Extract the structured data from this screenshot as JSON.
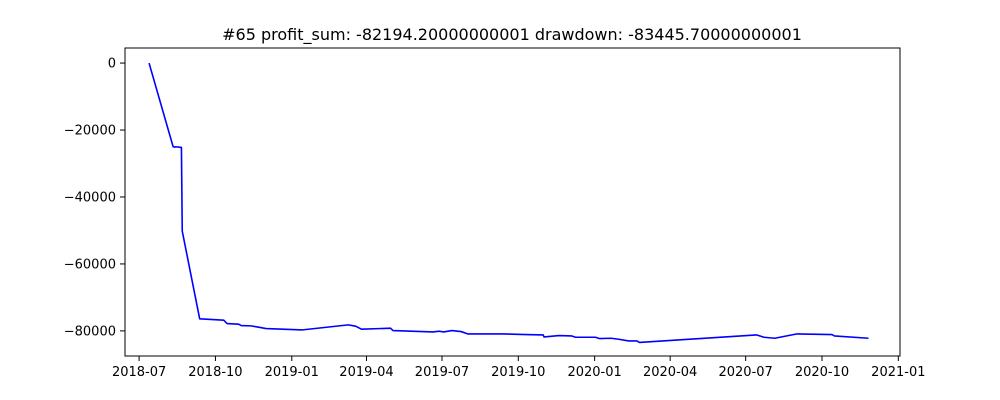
{
  "chart_data": {
    "type": "line",
    "title": "#65   profit_sum: -82194.20000000001 drawdown: -83445.70000000001",
    "xlabel": "",
    "ylabel": "",
    "x_axis_type": "date",
    "xlim": [
      "2018-06-14",
      "2021-01-03"
    ],
    "ylim": [
      -87500,
      4500
    ],
    "x_ticks": [
      "2018-07-01",
      "2018-10-01",
      "2019-01-01",
      "2019-04-01",
      "2019-07-01",
      "2019-10-01",
      "2020-01-01",
      "2020-04-01",
      "2020-07-01",
      "2020-10-01",
      "2021-01-01"
    ],
    "x_tick_labels": [
      "2018-07",
      "2018-10",
      "2019-01",
      "2019-04",
      "2019-07",
      "2019-10",
      "2020-01",
      "2020-04",
      "2020-07",
      "2020-10",
      "2021-01"
    ],
    "y_ticks": [
      0,
      -20000,
      -40000,
      -60000,
      -80000
    ],
    "y_tick_labels": [
      "0",
      "−20000",
      "−40000",
      "−60000",
      "−80000"
    ],
    "grid": false,
    "legend": "none",
    "series": [
      {
        "color": "#0000ff",
        "x": [
          "2018-07-13",
          "2018-08-11",
          "2018-08-13",
          "2018-08-14",
          "2018-08-21",
          "2018-08-22",
          "2018-09-12",
          "2018-10-11",
          "2018-10-15",
          "2018-10-29",
          "2018-11-01",
          "2018-11-13",
          "2018-11-22",
          "2018-12-01",
          "2019-01-14",
          "2019-03-10",
          "2019-03-19",
          "2019-03-26",
          "2019-04-30",
          "2019-05-03",
          "2019-06-20",
          "2019-06-28",
          "2019-07-03",
          "2019-07-13",
          "2019-07-24",
          "2019-08-01",
          "2019-09-12",
          "2019-10-10",
          "2019-10-31",
          "2019-11-01",
          "2019-11-19",
          "2019-12-04",
          "2019-12-09",
          "2020-01-02",
          "2020-01-07",
          "2020-01-21",
          "2020-01-30",
          "2020-02-11",
          "2020-02-21",
          "2020-02-24",
          "2020-07-14",
          "2020-07-23",
          "2020-08-05",
          "2020-09-01",
          "2020-10-13",
          "2020-10-16",
          "2020-11-26"
        ],
        "y": [
          0,
          -25000,
          -25100,
          -25000,
          -25200,
          -50200,
          -76400,
          -76800,
          -77800,
          -78000,
          -78400,
          -78500,
          -78900,
          -79300,
          -79700,
          -78200,
          -78600,
          -79500,
          -79200,
          -79900,
          -80300,
          -80100,
          -80300,
          -79900,
          -80200,
          -80900,
          -80900,
          -81100,
          -81200,
          -81800,
          -81400,
          -81500,
          -81900,
          -81900,
          -82300,
          -82200,
          -82500,
          -83000,
          -83000,
          -83446,
          -81200,
          -81900,
          -82200,
          -80900,
          -81100,
          -81500,
          -82194
        ]
      }
    ]
  }
}
